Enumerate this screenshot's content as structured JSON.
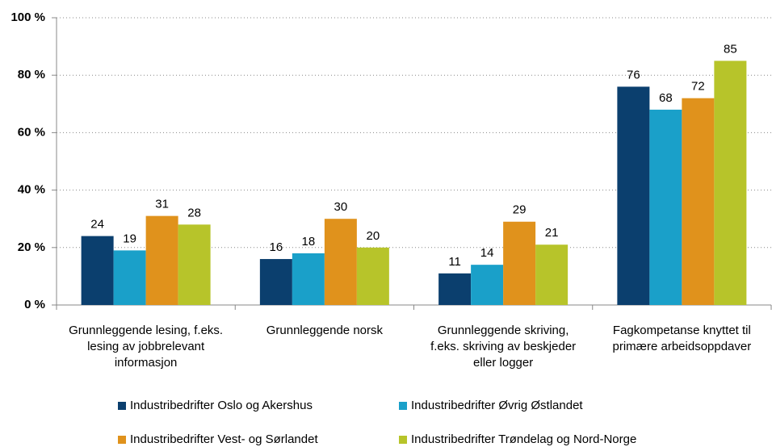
{
  "chart_data": {
    "type": "bar",
    "categories": [
      "Grunnleggende lesing, f.eks. lesing av jobbrelevant informasjon",
      "Grunnleggende norsk",
      "Grunnleggende skriving, f.eks. skriving av beskjeder eller logger",
      "Fagkompetanse knyttet til primære arbeidsoppdaver"
    ],
    "series": [
      {
        "name": "Industribedrifter Oslo og Akershus",
        "color": "#0b3f6e",
        "values": [
          24,
          16,
          11,
          76
        ]
      },
      {
        "name": "Industribedrifter Øvrig Østlandet",
        "color": "#1aa0c9",
        "values": [
          19,
          18,
          14,
          68
        ]
      },
      {
        "name": "Industribedrifter Vest- og Sørlandet",
        "color": "#e0921c",
        "values": [
          31,
          30,
          29,
          72
        ]
      },
      {
        "name": "Industribedrifter Trøndelag og Nord-Norge",
        "color": "#b7c42a",
        "values": [
          28,
          20,
          21,
          85
        ]
      }
    ],
    "ylim": [
      0,
      100
    ],
    "yticks": [
      {
        "value": 0,
        "label": "0 %"
      },
      {
        "value": 20,
        "label": "20 %"
      },
      {
        "value": 40,
        "label": "40 %"
      },
      {
        "value": 60,
        "label": "60 %"
      },
      {
        "value": 80,
        "label": "80 %"
      },
      {
        "value": 100,
        "label": "100 %"
      }
    ],
    "grid": true
  }
}
